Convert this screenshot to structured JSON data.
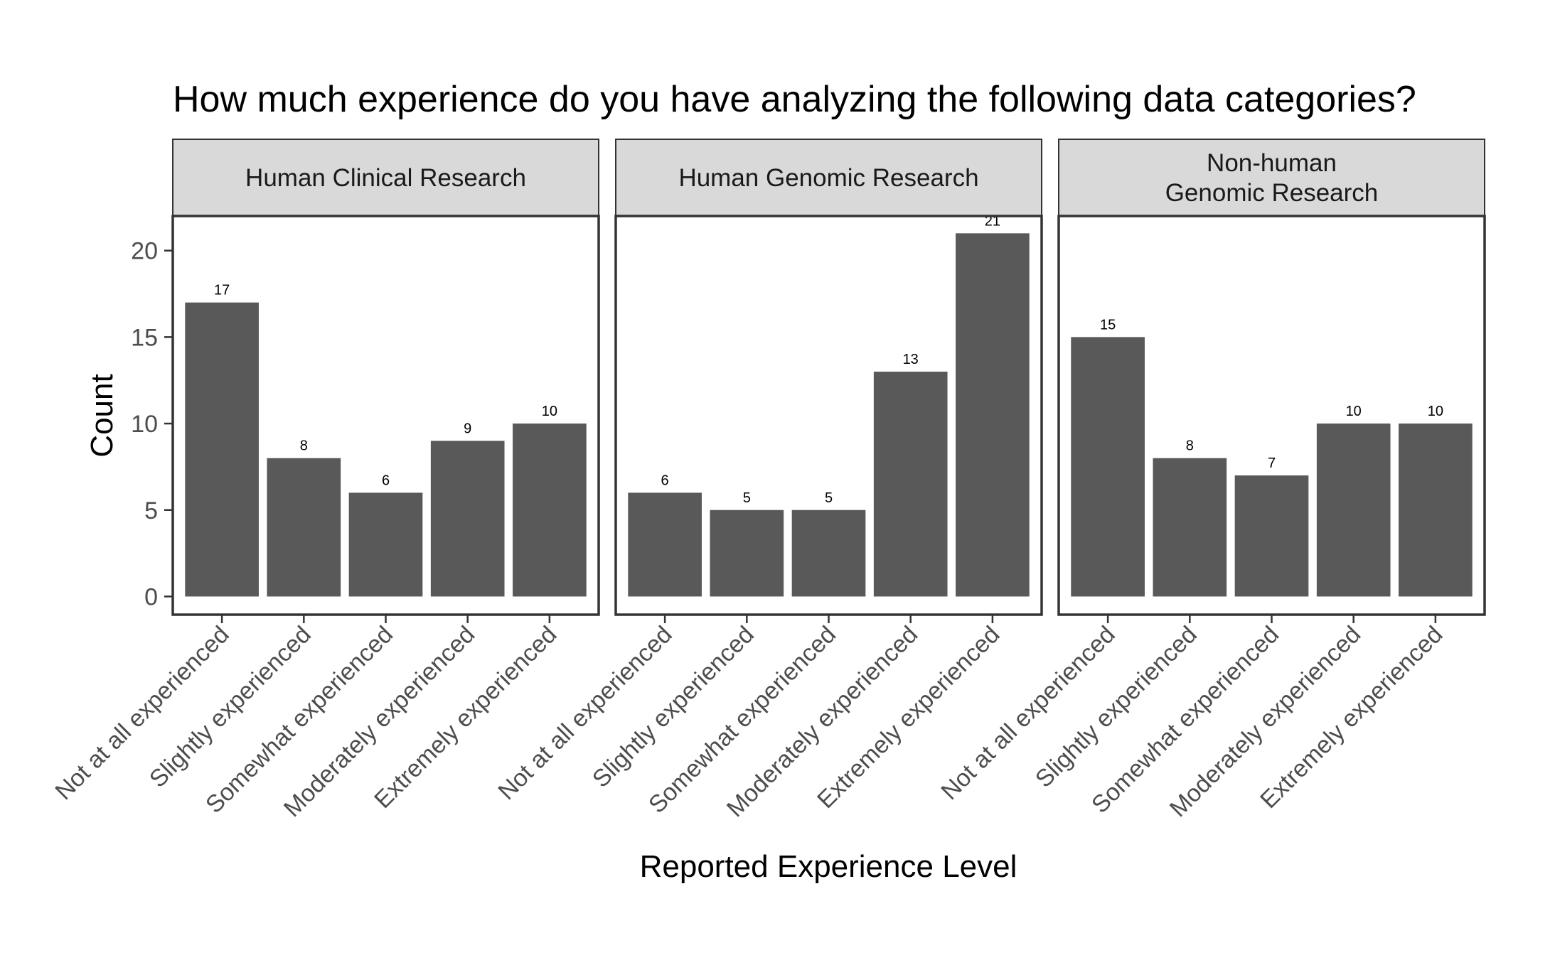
{
  "chart_data": {
    "type": "bar",
    "title": "How much experience do you have analyzing the following data categories?",
    "xlabel": "Reported Experience Level",
    "ylabel": "Count",
    "ylim": [
      -1.05,
      22
    ],
    "yticks": [
      0,
      5,
      10,
      15,
      20
    ],
    "categories": [
      "Not at all experienced",
      "Slightly experienced",
      "Somewhat experienced",
      "Moderately experienced",
      "Extremely experienced"
    ],
    "panels": [
      {
        "name": [
          "Human Clinical Research"
        ],
        "values": [
          17,
          8,
          6,
          9,
          10
        ]
      },
      {
        "name": [
          "Human Genomic Research"
        ],
        "values": [
          6,
          5,
          5,
          13,
          21
        ]
      },
      {
        "name": [
          "Non-human",
          "Genomic Research"
        ],
        "values": [
          15,
          8,
          7,
          10,
          10
        ]
      }
    ],
    "grid": false,
    "bar_color": "#595959",
    "strip_fill": "#d9d9d9",
    "border_color": "#333333",
    "text_color": "#000000",
    "tick_label_color": "#4d4d4d"
  }
}
